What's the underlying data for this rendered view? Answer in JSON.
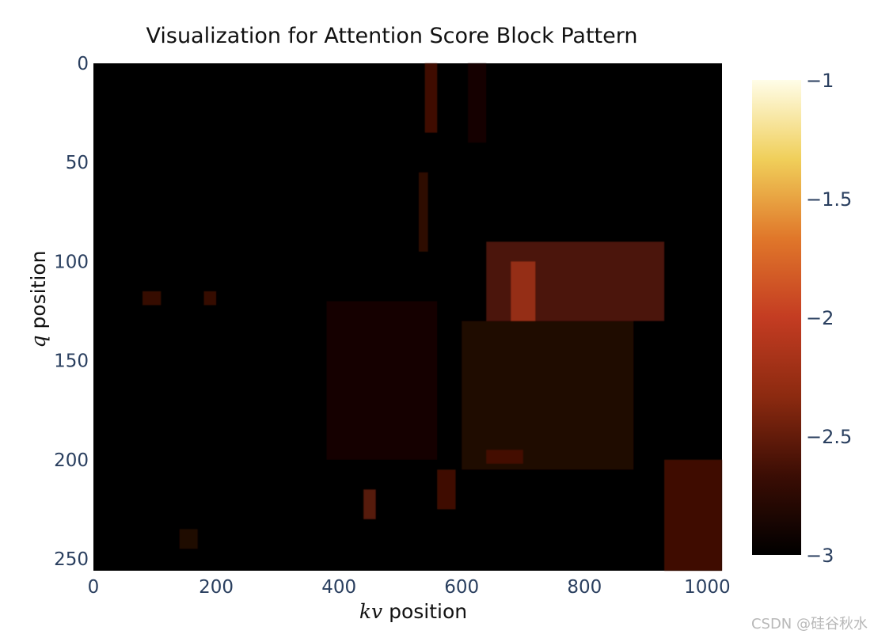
{
  "chart_data": {
    "type": "heatmap",
    "title": "Visualization for Attention Score Block Pattern",
    "xlabel": {
      "var": "kv",
      "text": "position"
    },
    "ylabel": {
      "var": "q",
      "text": "position"
    },
    "xlim": [
      0,
      1024
    ],
    "ylim": [
      0,
      256
    ],
    "y_reversed": true,
    "x_ticks": [
      "0",
      "200",
      "400",
      "600",
      "800",
      "1000"
    ],
    "y_ticks": [
      "0",
      "50",
      "100",
      "150",
      "200",
      "250"
    ],
    "colorbar": {
      "range": [
        -3,
        -1
      ],
      "ticks": [
        "−1",
        "−1.5",
        "−2",
        "−2.5",
        "−3"
      ],
      "colors": [
        "#000000",
        "#3b0d04",
        "#8c2a10",
        "#c43c22",
        "#e0772a",
        "#f0cf5a",
        "#fffde8"
      ]
    },
    "background_value": -3,
    "regions": [
      {
        "x": [
          540,
          560
        ],
        "y": [
          0,
          35
        ],
        "value": -2.6
      },
      {
        "x": [
          610,
          640
        ],
        "y": [
          0,
          40
        ],
        "value": -2.85
      },
      {
        "x": [
          530,
          545
        ],
        "y": [
          55,
          95
        ],
        "value": -2.7
      },
      {
        "x": [
          640,
          930
        ],
        "y": [
          90,
          130
        ],
        "value": -2.55
      },
      {
        "x": [
          680,
          720
        ],
        "y": [
          100,
          130
        ],
        "value": -2.2
      },
      {
        "x": [
          380,
          560
        ],
        "y": [
          120,
          200
        ],
        "value": -2.85
      },
      {
        "x": [
          600,
          880
        ],
        "y": [
          130,
          205
        ],
        "value": -2.8
      },
      {
        "x": [
          640,
          700
        ],
        "y": [
          195,
          202
        ],
        "value": -2.6
      },
      {
        "x": [
          930,
          1024
        ],
        "y": [
          200,
          256
        ],
        "value": -2.6
      },
      {
        "x": [
          440,
          460
        ],
        "y": [
          215,
          230
        ],
        "value": -2.5
      },
      {
        "x": [
          560,
          590
        ],
        "y": [
          205,
          225
        ],
        "value": -2.6
      },
      {
        "x": [
          80,
          110
        ],
        "y": [
          115,
          122
        ],
        "value": -2.65
      },
      {
        "x": [
          180,
          200
        ],
        "y": [
          115,
          122
        ],
        "value": -2.65
      },
      {
        "x": [
          140,
          170
        ],
        "y": [
          235,
          245
        ],
        "value": -2.8
      }
    ]
  },
  "watermark": "CSDN @硅谷秋水"
}
